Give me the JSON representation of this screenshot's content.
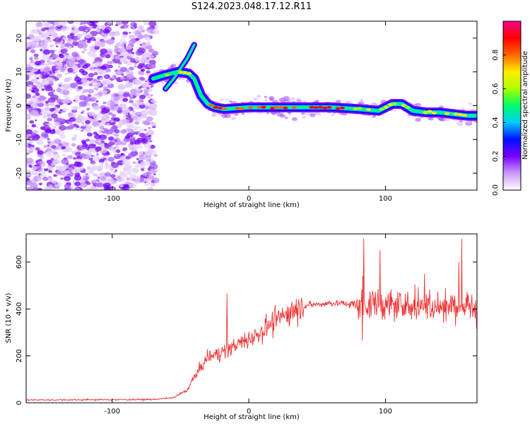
{
  "title": "S124.2023.048.17.12.R11",
  "colors": {
    "snr_line": "#ee3333",
    "noise_purple": "#8a2be2",
    "colorbar": [
      "#ffffff",
      "#cc99ff",
      "#7b00ff",
      "#0011ff",
      "#00ccff",
      "#00ff66",
      "#aaff00",
      "#ffee00",
      "#ff6600",
      "#ff0000",
      "#ff0088"
    ]
  },
  "chart_data": [
    {
      "type": "heatmap",
      "xlabel": "Height of straight line (km)",
      "ylabel": "Frequency (Hz)",
      "xlim": [
        -163,
        167
      ],
      "ylim": [
        -25,
        25
      ],
      "x_ticks": [
        -100,
        0,
        100
      ],
      "y_ticks": [
        -20,
        -10,
        0,
        10,
        20
      ],
      "colorbar": {
        "label": "Normalized spectral amplitude",
        "range": [
          0,
          1
        ],
        "ticks": [
          "0.0",
          "0.2",
          "0.4",
          "0.6",
          "0.8"
        ]
      },
      "ridge": {
        "x": [
          -70,
          -62,
          -52,
          -44,
          -40,
          -35,
          -30,
          -25,
          -18,
          0,
          20,
          40,
          60,
          80,
          95,
          105,
          112,
          120,
          130,
          140,
          150,
          160,
          167
        ],
        "y": [
          8,
          9,
          10,
          9.5,
          8,
          3,
          0.5,
          -0.5,
          -1,
          -0.5,
          -0.5,
          -0.5,
          -0.5,
          -1,
          -1.5,
          0.5,
          0.5,
          -1.5,
          -2,
          -2,
          -2.5,
          -3,
          -3
        ]
      },
      "branch": {
        "x": [
          -61,
          -55,
          -50,
          -45,
          -40
        ],
        "y": [
          5,
          8,
          11,
          14,
          18
        ]
      }
    },
    {
      "type": "line",
      "xlabel": "Height of straight line (km)",
      "ylabel": "SNR (10 * v/v)",
      "xlim": [
        -163,
        167
      ],
      "ylim": [
        0,
        720
      ],
      "x_ticks": [
        -100,
        0,
        100
      ],
      "y_ticks": [
        0,
        200,
        400,
        600
      ],
      "envelope": {
        "x": [
          -163,
          -70,
          -55,
          -45,
          -40,
          -35,
          -30,
          -20,
          -10,
          0,
          10,
          20,
          30,
          40,
          60,
          80,
          90,
          100,
          120,
          140,
          167
        ],
        "y": [
          12,
          14,
          22,
          55,
          110,
          150,
          195,
          215,
          245,
          270,
          310,
          350,
          390,
          415,
          425,
          420,
          420,
          420,
          410,
          410,
          410
        ]
      },
      "spikes": [
        {
          "x": -16,
          "y": 465
        },
        {
          "x": 84,
          "y": 700
        },
        {
          "x": 96,
          "y": 650
        },
        {
          "x": 156,
          "y": 700
        },
        {
          "x": 83,
          "y": 265
        }
      ]
    }
  ]
}
